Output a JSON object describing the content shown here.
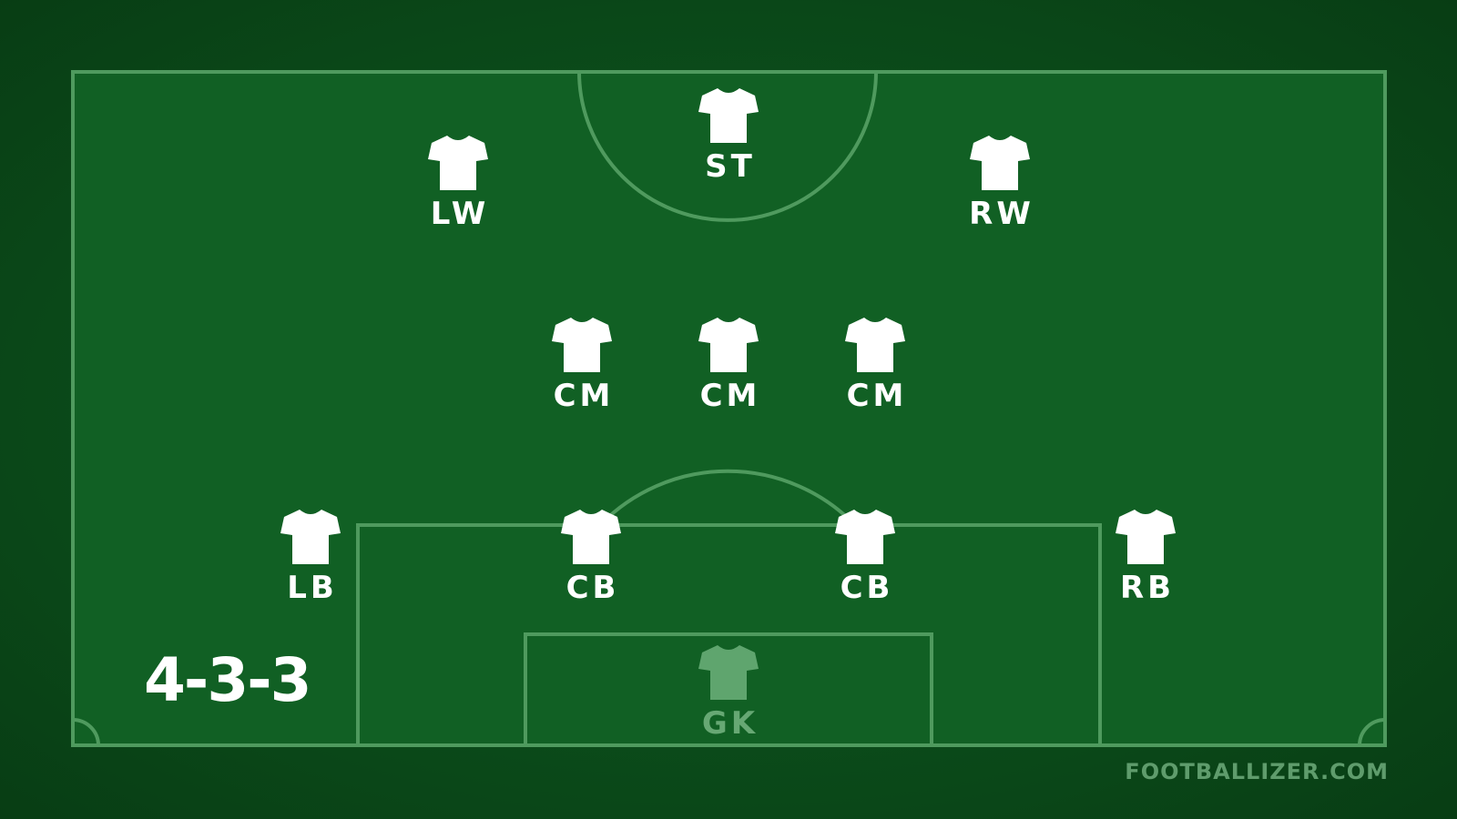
{
  "formation": "4-3-3",
  "watermark": "FOOTBALLIZER.COM",
  "colors": {
    "pitch": "#116024",
    "line": "#4f9a5e",
    "shirt": "#ffffff",
    "goalkeeper_shirt": "#5fa56e",
    "goalkeeper_label": "#67a874"
  },
  "players": [
    {
      "position": "ST",
      "icon": "shirt-icon"
    },
    {
      "position": "LW",
      "icon": "shirt-icon"
    },
    {
      "position": "RW",
      "icon": "shirt-icon"
    },
    {
      "position": "CM",
      "icon": "shirt-icon"
    },
    {
      "position": "CM",
      "icon": "shirt-icon"
    },
    {
      "position": "CM",
      "icon": "shirt-icon"
    },
    {
      "position": "LB",
      "icon": "shirt-icon"
    },
    {
      "position": "CB",
      "icon": "shirt-icon"
    },
    {
      "position": "CB",
      "icon": "shirt-icon"
    },
    {
      "position": "RB",
      "icon": "shirt-icon"
    },
    {
      "position": "GK",
      "icon": "goalkeeper-shirt-icon"
    }
  ]
}
